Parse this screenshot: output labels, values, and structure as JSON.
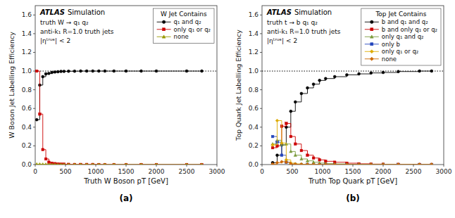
{
  "chart_data": [
    {
      "type": "step",
      "xlabel": "Truth W Boson pT [GeV]",
      "ylabel": "W Boson Jet Labelling Efficiency",
      "legend_title": "W  Jet Contains",
      "annotations": [
        "ATLAS",
        "Simulation",
        "truth W → q₁ q₂",
        "anti-k₁ R=1.0 truth jets",
        "|ηᵗʳᵘᵉ| < 2",
        "(a)"
      ],
      "xlim": [
        0,
        3000
      ],
      "xticks": [
        0,
        500,
        1000,
        1500,
        2000,
        2500,
        3000
      ],
      "ylim": [
        0.0,
        1.7
      ],
      "yticks": [
        {
          "value": 0.0,
          "label": "0.0"
        },
        0.2,
        0.4,
        0.6,
        0.8,
        {
          "value": 1.0,
          "label": "1.0"
        },
        1.2,
        1.4,
        1.6
      ],
      "reference_lines": [
        1.0
      ],
      "grid": false,
      "legend": "upper right",
      "x": [
        25,
        75,
        125,
        175,
        225,
        275,
        325,
        375,
        425,
        475,
        550,
        650,
        750,
        850,
        950,
        1050,
        1150,
        1300,
        1500,
        1750,
        2000,
        2500,
        2750
      ],
      "series": [
        {
          "name": "q₁ and q₂",
          "color": "black",
          "marker": "circle",
          "values": [
            0.48,
            0.85,
            0.94,
            0.97,
            0.975,
            0.985,
            0.99,
            0.993,
            0.996,
            0.997,
            0.998,
            0.999,
            1.0,
            1.0,
            1.0,
            1.0,
            1.0,
            1.0,
            1.0,
            1.0,
            1.0,
            1.0,
            1.0
          ]
        },
        {
          "name": "only q₁ or q₂",
          "color": "#cc0000",
          "marker": "square",
          "values": [
            1.0,
            0.54,
            0.16,
            0.06,
            0.025,
            0.015,
            0.01,
            0.007,
            0.005,
            0.004,
            0.002,
            0.001,
            0.001,
            0.001,
            0.001,
            0.0,
            0.0,
            0.0,
            0.0,
            0.0,
            0.0,
            0.0,
            0.0
          ]
        },
        {
          "name": "none",
          "color": "#999900",
          "marker": "triangle",
          "values": [
            0.004,
            0.004,
            0.003,
            0.002,
            0.001,
            0.001,
            0.001,
            0.0,
            0.0,
            0.0,
            0.0,
            0.0,
            0.0,
            0.0,
            0.0,
            0.0,
            0.0,
            0.0,
            0.0,
            0.0,
            0.0,
            0.0,
            0.0
          ]
        }
      ]
    },
    {
      "type": "step",
      "xlabel": "Truth Top Quark pT [GeV]",
      "ylabel": "Top Quark Jet Labelling Efficiency",
      "legend_title": "Top Jet Contains",
      "annotations": [
        "ATLAS",
        "Simulation",
        "truth t → b q₁ q₂",
        "anti-k₁ R=1.0 truth jets",
        "|ηᵗʳᵘᵉ| < 2",
        "(b)"
      ],
      "xlim": [
        0,
        3000
      ],
      "xticks": [
        0,
        500,
        1000,
        1500,
        2000,
        2500,
        3000
      ],
      "ylim": [
        0.0,
        1.7
      ],
      "yticks": [
        {
          "value": 0.0,
          "label": "0.0"
        },
        0.2,
        0.4,
        0.6,
        0.8,
        {
          "value": 1.0,
          "label": "1.0"
        },
        1.2,
        1.4,
        1.6
      ],
      "reference_lines": [
        1.0
      ],
      "grid": false,
      "legend": "upper right",
      "x": [
        175,
        250,
        325,
        400,
        475,
        550,
        650,
        750,
        850,
        950,
        1050,
        1200,
        1400,
        1600,
        1800,
        2000,
        2250,
        2600,
        2800
      ],
      "series": [
        {
          "name": "b and q₁ and q₂",
          "color": "black",
          "marker": "circle",
          "values": [
            0.02,
            0.1,
            0.21,
            0.4,
            0.57,
            0.67,
            0.76,
            0.82,
            0.86,
            0.9,
            0.92,
            0.94,
            0.96,
            0.97,
            0.98,
            0.985,
            0.995,
            1.0,
            1.0
          ]
        },
        {
          "name": "b and only q₁ or q₂",
          "color": "#cc0000",
          "marker": "square",
          "values": [
            0.18,
            0.2,
            0.41,
            0.44,
            0.3,
            0.22,
            0.15,
            0.1,
            0.07,
            0.05,
            0.035,
            0.025,
            0.015,
            0.008,
            0.005,
            0.003,
            0.002,
            0.001,
            0.001
          ]
        },
        {
          "name": "only q₁ and q₂",
          "color": "#7a9a3a",
          "marker": "triangle",
          "values": [
            0.22,
            0.26,
            0.21,
            0.22,
            0.14,
            0.1,
            0.06,
            0.04,
            0.025,
            0.016,
            0.01,
            0.007,
            0.003,
            0.002,
            0.001,
            0.001,
            0.0,
            0.0,
            0.0
          ]
        },
        {
          "name": "only b",
          "color": "#2244bb",
          "marker": "square",
          "values": [
            0.3,
            0.24,
            0.1,
            0.025,
            0.005,
            0.002,
            0.001,
            0.001,
            0.0,
            0.0,
            0.0,
            0.0,
            0.0,
            0.0,
            0.0,
            0.0,
            0.0,
            0.0,
            0.0
          ]
        },
        {
          "name": "only q₁ or q₂",
          "color": "#ddaa00",
          "marker": "diamond",
          "values": [
            0.21,
            0.47,
            0.23,
            0.05,
            0.015,
            0.007,
            0.003,
            0.002,
            0.001,
            0.0,
            0.0,
            0.0,
            0.0,
            0.0,
            0.0,
            0.0,
            0.0,
            0.0,
            0.0
          ]
        },
        {
          "name": "none",
          "color": "#cc6600",
          "marker": "diamond",
          "values": [
            0.005,
            0.02,
            0.03,
            0.025,
            0.005,
            0.002,
            0.001,
            0.001,
            0.0,
            0.0,
            0.0,
            0.0,
            0.0,
            0.0,
            0.0,
            0.0,
            0.0,
            0.0,
            0.0
          ]
        }
      ]
    }
  ]
}
